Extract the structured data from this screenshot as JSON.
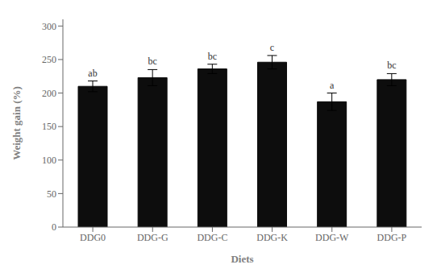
{
  "chart_data": {
    "type": "bar",
    "categories": [
      "DDG0",
      "DDG-G",
      "DDG-C",
      "DDG-K",
      "DDG-W",
      "DDG-P"
    ],
    "values": [
      210,
      223,
      236,
      246,
      187,
      220
    ],
    "errors": [
      8,
      12,
      7,
      10,
      13,
      9
    ],
    "annotations": [
      "ab",
      "bc",
      "bc",
      "c",
      "a",
      "bc"
    ],
    "color": "#0d0d0d",
    "xlabel": "Diets",
    "ylabel": "Weight gain (%)",
    "ylim": [
      0,
      310
    ],
    "yticks": [
      0,
      50,
      100,
      150,
      200,
      250,
      300
    ],
    "grid": false
  }
}
